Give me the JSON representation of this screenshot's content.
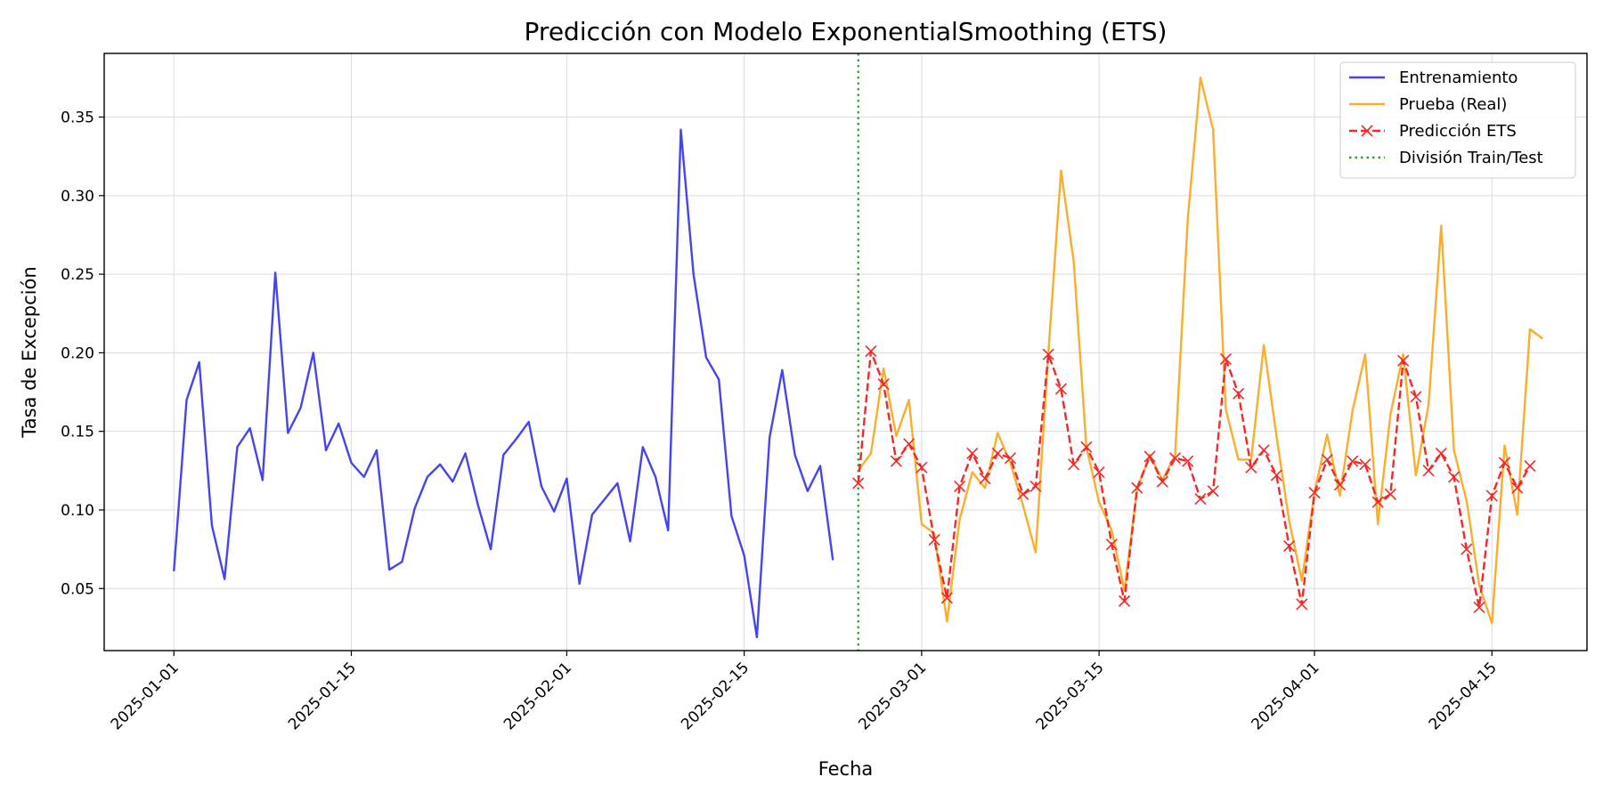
{
  "chart_data": {
    "type": "line",
    "title": "Predicción con Modelo ExponentialSmoothing (ETS)",
    "xlabel": "Fecha",
    "ylabel": "Tasa de Excepción",
    "x_start_date": "2025-01-01",
    "x_range_days": [
      -5.5,
      111.5
    ],
    "ylim": [
      0.0105,
      0.3905
    ],
    "grid": true,
    "legend_placement": "top-right",
    "xticks": [
      "2025-01-01",
      "2025-01-15",
      "2025-02-01",
      "2025-02-15",
      "2025-03-01",
      "2025-03-15",
      "2025-04-01",
      "2025-04-15"
    ],
    "yticks": [
      0.05,
      0.1,
      0.15,
      0.2,
      0.25,
      0.3,
      0.35
    ],
    "split_date": "2025-02-24",
    "series": [
      {
        "name": "Entrenamiento",
        "color": "#4444f2",
        "style": "solid",
        "start_date": "2025-01-01",
        "values": [
          0.061,
          0.17,
          0.194,
          0.09,
          0.056,
          0.14,
          0.152,
          0.119,
          0.251,
          0.149,
          0.165,
          0.2,
          0.138,
          0.155,
          0.13,
          0.121,
          0.138,
          0.062,
          0.067,
          0.101,
          0.121,
          0.129,
          0.118,
          0.136,
          0.103,
          0.075,
          0.135,
          0.145,
          0.156,
          0.115,
          0.099,
          0.12,
          0.053,
          0.097,
          0.107,
          0.117,
          0.08,
          0.14,
          0.121,
          0.087,
          0.342,
          0.25,
          0.197,
          0.183,
          0.096,
          0.071,
          0.019,
          0.146,
          0.189,
          0.135,
          0.112,
          0.128,
          0.068
        ]
      },
      {
        "name": "Prueba (Real)",
        "color": "#fbad2c",
        "style": "solid",
        "start_date": "2025-02-24",
        "values": [
          0.125,
          0.136,
          0.19,
          0.147,
          0.17,
          0.091,
          0.085,
          0.029,
          0.094,
          0.124,
          0.114,
          0.149,
          0.13,
          0.103,
          0.073,
          0.2,
          0.316,
          0.258,
          0.14,
          0.105,
          0.087,
          0.049,
          0.113,
          0.135,
          0.119,
          0.135,
          0.285,
          0.375,
          0.342,
          0.164,
          0.132,
          0.132,
          0.205,
          0.147,
          0.093,
          0.055,
          0.111,
          0.148,
          0.109,
          0.163,
          0.199,
          0.091,
          0.161,
          0.199,
          0.122,
          0.167,
          0.281,
          0.138,
          0.106,
          0.052,
          0.028,
          0.141,
          0.097,
          0.215,
          0.209
        ]
      },
      {
        "name": "Predicción ETS",
        "color": "#f52727",
        "style": "dashed",
        "marker": "x",
        "start_date": "2025-02-24",
        "values": [
          0.117,
          0.201,
          0.18,
          0.131,
          0.142,
          0.127,
          0.081,
          0.044,
          0.115,
          0.136,
          0.12,
          0.136,
          0.133,
          0.11,
          0.115,
          0.199,
          0.177,
          0.129,
          0.14,
          0.124,
          0.078,
          0.042,
          0.114,
          0.134,
          0.118,
          0.133,
          0.131,
          0.107,
          0.112,
          0.196,
          0.174,
          0.127,
          0.138,
          0.122,
          0.077,
          0.04,
          0.111,
          0.132,
          0.116,
          0.131,
          0.129,
          0.105,
          0.11,
          0.195,
          0.172,
          0.125,
          0.136,
          0.121,
          0.075,
          0.038,
          0.109,
          0.13,
          0.114,
          0.128
        ]
      }
    ],
    "split_series": {
      "name": "División Train/Test",
      "color": "#2ca02c",
      "style": "dotted"
    },
    "axes_color": "#000000",
    "grid_color": "#dddddd"
  }
}
